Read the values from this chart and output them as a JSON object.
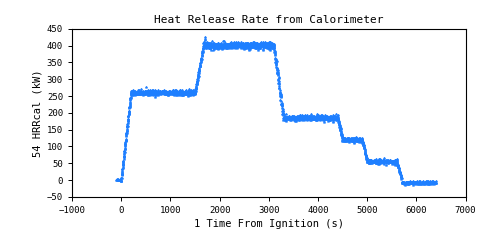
{
  "title": "Heat Release Rate from Calorimeter",
  "xlabel": "1 Time From Ignition (s)",
  "ylabel": "54 HRRcal (kW)",
  "xlim": [
    -1000,
    7000
  ],
  "ylim": [
    -50,
    450
  ],
  "xticks": [
    -1000,
    0,
    1000,
    2000,
    3000,
    4000,
    5000,
    6000,
    7000
  ],
  "yticks": [
    -50,
    0,
    50,
    100,
    150,
    200,
    250,
    300,
    350,
    400,
    450
  ],
  "color": "#1E7FFF",
  "marker": "*",
  "markersize": 2.0,
  "bg_color": "#ffffff",
  "noise_amplitude": 8,
  "noise_seed": 42
}
